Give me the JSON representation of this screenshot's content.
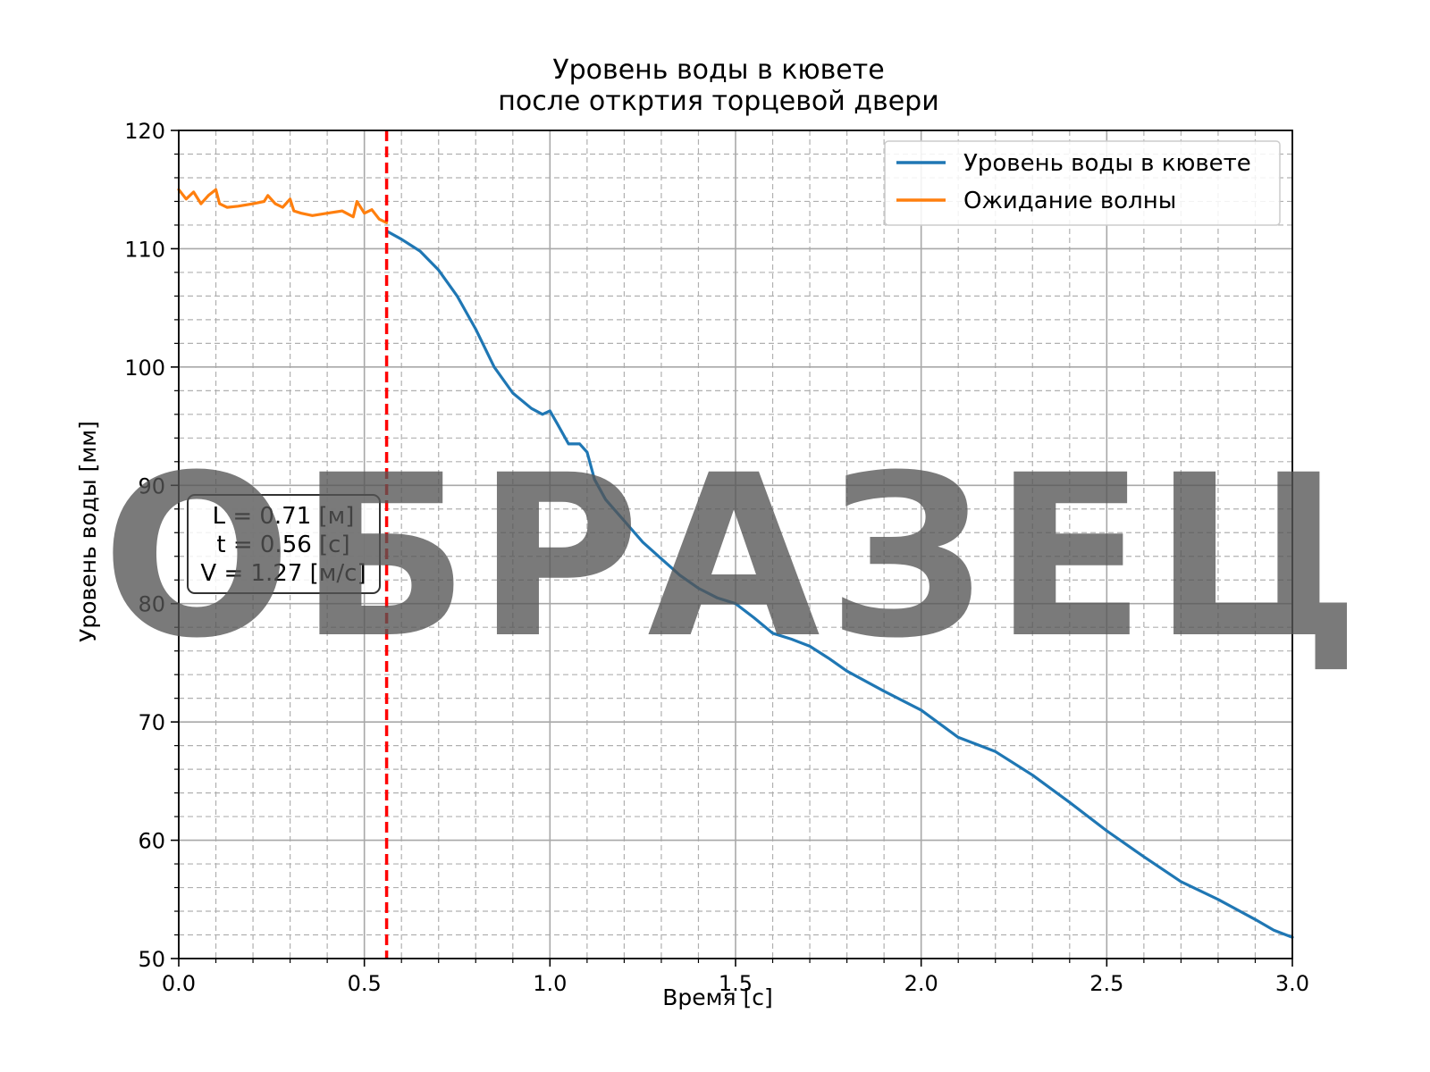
{
  "chart_data": {
    "type": "line",
    "title": [
      "Уровень воды в кювете",
      "после откртия торцевой двери"
    ],
    "xlabel": "Время [с]",
    "ylabel": "Уровень воды [мм]",
    "xlim": [
      0,
      3
    ],
    "ylim": [
      50,
      120
    ],
    "xticks": [
      0.0,
      0.5,
      1.0,
      1.5,
      2.0,
      2.5,
      3.0
    ],
    "xtick_labels": [
      "0.0",
      "0.5",
      "1.0",
      "1.5",
      "2.0",
      "2.5",
      "3.0"
    ],
    "yticks": [
      50,
      60,
      70,
      80,
      90,
      100,
      110,
      120
    ],
    "ytick_labels": [
      "50",
      "60",
      "70",
      "80",
      "90",
      "100",
      "110",
      "120"
    ],
    "grid": {
      "major": "solid",
      "minor": "dashed"
    },
    "legend_location": "top-right",
    "series": [
      {
        "name": "Уровень воды в кювете",
        "color": "#1f77b4",
        "x": [
          0.56,
          0.6,
          0.65,
          0.7,
          0.75,
          0.8,
          0.85,
          0.9,
          0.95,
          0.98,
          1.0,
          1.02,
          1.05,
          1.08,
          1.1,
          1.12,
          1.15,
          1.2,
          1.25,
          1.3,
          1.35,
          1.4,
          1.45,
          1.5,
          1.55,
          1.6,
          1.65,
          1.7,
          1.75,
          1.8,
          1.9,
          2.0,
          2.1,
          2.2,
          2.3,
          2.4,
          2.5,
          2.6,
          2.7,
          2.8,
          2.9,
          2.95,
          3.0
        ],
        "y": [
          111.5,
          110.8,
          109.8,
          108.2,
          106.0,
          103.2,
          100.0,
          97.8,
          96.5,
          96.0,
          96.3,
          95.2,
          93.5,
          93.5,
          92.8,
          90.5,
          88.8,
          87.0,
          85.2,
          83.8,
          82.4,
          81.3,
          80.5,
          80.0,
          78.8,
          77.5,
          77.0,
          76.4,
          75.4,
          74.3,
          72.6,
          71.0,
          68.7,
          67.5,
          65.5,
          63.2,
          60.8,
          58.6,
          56.5,
          55.0,
          53.3,
          52.4,
          51.8
        ]
      },
      {
        "name": "Ожидание волны",
        "color": "#ff7f0e",
        "x": [
          0.0,
          0.02,
          0.04,
          0.06,
          0.08,
          0.1,
          0.11,
          0.13,
          0.16,
          0.2,
          0.23,
          0.24,
          0.26,
          0.28,
          0.3,
          0.31,
          0.33,
          0.36,
          0.4,
          0.44,
          0.47,
          0.48,
          0.5,
          0.52,
          0.54,
          0.56
        ],
        "y": [
          115.0,
          114.2,
          114.8,
          113.8,
          114.5,
          115.0,
          113.8,
          113.5,
          113.6,
          113.8,
          114.0,
          114.5,
          113.8,
          113.5,
          114.2,
          113.2,
          113.0,
          112.8,
          113.0,
          113.2,
          112.7,
          114.0,
          113.0,
          113.3,
          112.5,
          112.2
        ]
      }
    ],
    "vertical_line": {
      "x": 0.56,
      "color": "#ff0000",
      "style": "dashed"
    },
    "annotation": {
      "lines": [
        "L = 0.71 [м]",
        "t = 0.56 [с]",
        "V = 1.27 [м/с]"
      ],
      "x": 0.28,
      "y": 85.5
    },
    "watermark": "ОБРАЗЕЦ"
  }
}
